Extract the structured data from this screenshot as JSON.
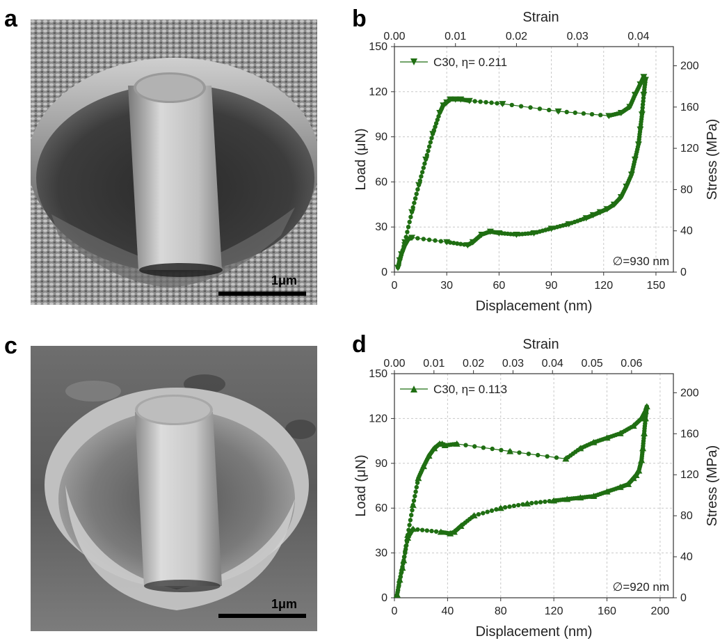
{
  "figure": {
    "panels": [
      {
        "letter": "a",
        "scale_bar": "1μm"
      },
      {
        "letter": "b"
      },
      {
        "letter": "c",
        "scale_bar": "1μm"
      },
      {
        "letter": "d"
      }
    ]
  },
  "colors": {
    "series": "#1f6e12",
    "grid": "#c8c8c8"
  },
  "chart_data": [
    {
      "panel": "b",
      "type": "scatter",
      "xlabel": "Displacement (nm)",
      "ylabel": "Load (μN)",
      "top_xlabel": "Strain",
      "right_ylabel": "Stress (MPa)",
      "xlim": [
        0,
        160
      ],
      "ylim": [
        0,
        150
      ],
      "x_ticks": [
        "0",
        "30",
        "60",
        "90",
        "120",
        "150"
      ],
      "y_ticks": [
        "0",
        "30",
        "60",
        "90",
        "120",
        "150"
      ],
      "top_ticks": [
        "0.00",
        "0.01",
        "0.02",
        "0.03",
        "0.04"
      ],
      "right_ticks": [
        "0",
        "40",
        "80",
        "120",
        "160",
        "200"
      ],
      "legend": "C30, η= 0.211",
      "marker": "triangle-down",
      "legend_position": "top-left",
      "annotation": "∅=930 nm",
      "grid": true,
      "series": [
        {
          "name": "C30, η= 0.211",
          "x": [
            2,
            6,
            10,
            14,
            18,
            22,
            26,
            28,
            30,
            32,
            35,
            38,
            43,
            62,
            94,
            123,
            130,
            135,
            138,
            141,
            143,
            144,
            143,
            142,
            141,
            140,
            138,
            136,
            133,
            130,
            126,
            122,
            118,
            114,
            110,
            100,
            90,
            80,
            70,
            60,
            55,
            50,
            45,
            42,
            30,
            10,
            8,
            6,
            4,
            3,
            2
          ],
          "y": [
            3,
            20,
            40,
            58,
            75,
            92,
            106,
            111,
            113,
            115,
            115,
            115,
            114,
            112,
            107,
            104,
            106,
            110,
            118,
            125,
            130,
            128,
            118,
            105,
            95,
            85,
            75,
            65,
            57,
            50,
            45,
            42,
            40,
            38,
            36,
            32,
            29,
            26,
            25,
            26,
            27,
            25,
            20,
            18,
            20,
            23,
            22,
            18,
            12,
            8,
            3
          ]
        }
      ]
    },
    {
      "panel": "d",
      "type": "scatter",
      "xlabel": "Displacement (nm)",
      "ylabel": "Load (μN)",
      "top_xlabel": "Strain",
      "right_ylabel": "Stress (MPa)",
      "xlim": [
        0,
        210
      ],
      "ylim": [
        0,
        150
      ],
      "x_ticks": [
        "0",
        "40",
        "80",
        "120",
        "160",
        "200"
      ],
      "y_ticks": [
        "0",
        "30",
        "60",
        "90",
        "120",
        "150"
      ],
      "top_ticks": [
        "0.00",
        "0.01",
        "0.02",
        "0.03",
        "0.04",
        "0.05",
        "0.06"
      ],
      "right_ticks": [
        "0",
        "40",
        "80",
        "120",
        "160",
        "200"
      ],
      "legend": "C30, η= 0.113",
      "marker": "triangle-up",
      "legend_position": "top-left",
      "annotation": "∅=920 nm",
      "grid": true,
      "series": [
        {
          "name": "C30, η= 0.113",
          "x": [
            2,
            6,
            10,
            14,
            18,
            22,
            26,
            30,
            34,
            36,
            38,
            47,
            87,
            129,
            140,
            150,
            160,
            170,
            180,
            186,
            189,
            190,
            189,
            188,
            187,
            186,
            184,
            182,
            180,
            176,
            170,
            160,
            150,
            140,
            130,
            120,
            100,
            80,
            60,
            50,
            45,
            42,
            35,
            14,
            10,
            7,
            4,
            2
          ],
          "y": [
            2,
            20,
            42,
            62,
            80,
            88,
            95,
            100,
            103,
            103,
            102,
            103,
            98,
            93,
            100,
            104,
            107,
            110,
            115,
            120,
            125,
            128,
            120,
            110,
            100,
            92,
            85,
            82,
            80,
            76,
            74,
            71,
            68,
            67,
            66,
            65,
            63,
            60,
            55,
            48,
            44,
            43,
            44,
            46,
            40,
            25,
            12,
            2
          ]
        }
      ]
    }
  ]
}
